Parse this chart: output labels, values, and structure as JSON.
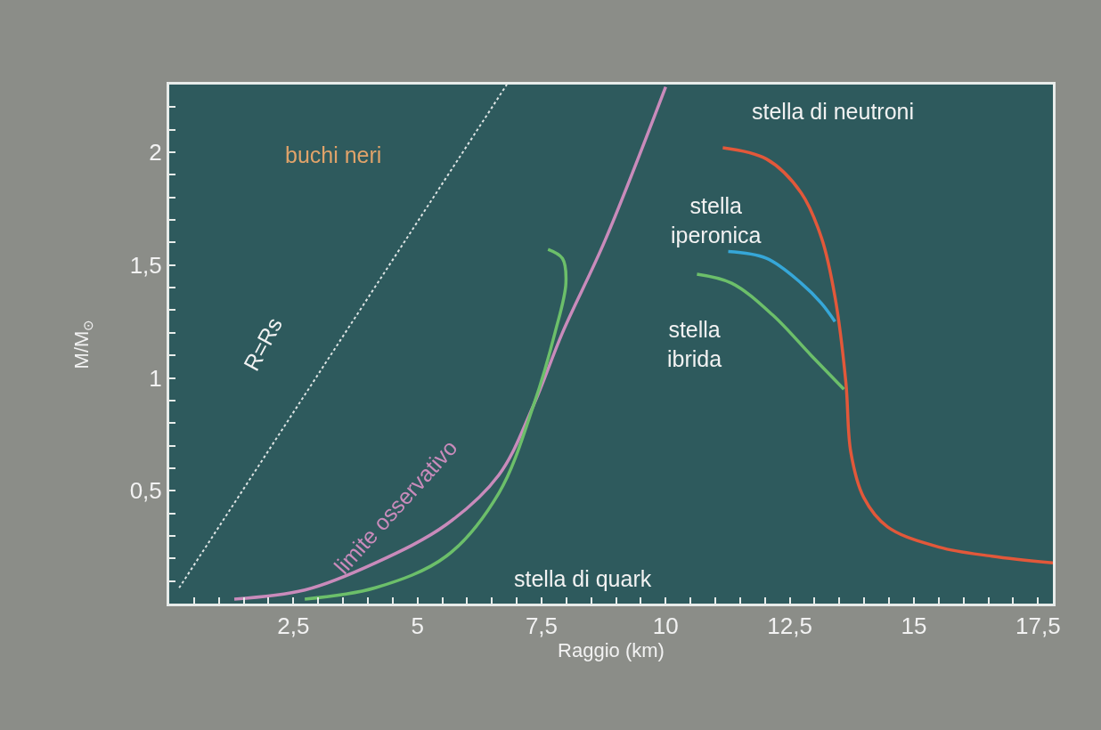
{
  "chart_data": {
    "type": "line",
    "xlabel": "Raggio (km)",
    "ylabel": "M/M$_{⊙}$",
    "xlim": [
      0,
      17.8
    ],
    "ylim": [
      0,
      2.3
    ],
    "xticks": [
      {
        "value": 0.5,
        "label": null
      },
      {
        "value": 1,
        "label": null
      },
      {
        "value": 1.5,
        "label": null
      },
      {
        "value": 2,
        "label": null
      },
      {
        "value": 2.5,
        "label": "2,5"
      },
      {
        "value": 3,
        "label": null
      },
      {
        "value": 3.5,
        "label": null
      },
      {
        "value": 4,
        "label": null
      },
      {
        "value": 4.5,
        "label": null
      },
      {
        "value": 5,
        "label": "5"
      },
      {
        "value": 5.5,
        "label": null
      },
      {
        "value": 6,
        "label": null
      },
      {
        "value": 6.5,
        "label": null
      },
      {
        "value": 7,
        "label": null
      },
      {
        "value": 7.5,
        "label": "7,5"
      },
      {
        "value": 8,
        "label": null
      },
      {
        "value": 8.5,
        "label": null
      },
      {
        "value": 9,
        "label": null
      },
      {
        "value": 9.5,
        "label": null
      },
      {
        "value": 10,
        "label": "10"
      },
      {
        "value": 10.5,
        "label": null
      },
      {
        "value": 11,
        "label": null
      },
      {
        "value": 11.5,
        "label": null
      },
      {
        "value": 12,
        "label": null
      },
      {
        "value": 12.5,
        "label": "12,5"
      },
      {
        "value": 13,
        "label": null
      },
      {
        "value": 13.5,
        "label": null
      },
      {
        "value": 14,
        "label": null
      },
      {
        "value": 14.5,
        "label": null
      },
      {
        "value": 15,
        "label": "15"
      },
      {
        "value": 15.5,
        "label": null
      },
      {
        "value": 16,
        "label": null
      },
      {
        "value": 16.5,
        "label": null
      },
      {
        "value": 17,
        "label": null
      },
      {
        "value": 17.5,
        "label": "17,5"
      }
    ],
    "yticks": [
      {
        "value": 0.1,
        "label": null
      },
      {
        "value": 0.2,
        "label": null
      },
      {
        "value": 0.3,
        "label": null
      },
      {
        "value": 0.4,
        "label": null
      },
      {
        "value": 0.5,
        "label": "0,5"
      },
      {
        "value": 0.6,
        "label": null
      },
      {
        "value": 0.7,
        "label": null
      },
      {
        "value": 0.8,
        "label": null
      },
      {
        "value": 0.9,
        "label": null
      },
      {
        "value": 1,
        "label": "1"
      },
      {
        "value": 1.1,
        "label": null
      },
      {
        "value": 1.2,
        "label": null
      },
      {
        "value": 1.3,
        "label": null
      },
      {
        "value": 1.4,
        "label": null
      },
      {
        "value": 1.5,
        "label": "1,5"
      },
      {
        "value": 1.6,
        "label": null
      },
      {
        "value": 1.7,
        "label": null
      },
      {
        "value": 1.8,
        "label": null
      },
      {
        "value": 1.9,
        "label": null
      },
      {
        "value": 2,
        "label": "2"
      },
      {
        "value": 2.1,
        "label": null
      },
      {
        "value": 2.2,
        "label": null
      }
    ],
    "line_style": "solid",
    "series": [
      {
        "color": "#dde4e4",
        "line_style": "dotted",
        "x": [
          0.2,
          6.8
        ],
        "values": [
          0.07,
          2.3
        ]
      },
      {
        "color": "#c98bbb",
        "x": [
          1.31,
          2.73,
          4.15,
          5.58,
          6.64,
          7.34,
          7.92,
          8.78,
          10.0
        ],
        "values": [
          0.02,
          0.06,
          0.18,
          0.35,
          0.57,
          0.88,
          1.2,
          1.61,
          2.29
        ]
      },
      {
        "color": "#6cbf6a",
        "x": [
          2.73,
          4.15,
          5.58,
          6.64,
          7.34,
          7.77,
          7.99,
          7.92,
          7.63
        ],
        "values": [
          0.02,
          0.07,
          0.21,
          0.49,
          0.88,
          1.2,
          1.42,
          1.53,
          1.57
        ]
      },
      {
        "color": "#e2583a",
        "x": [
          11.15,
          12.03,
          12.73,
          13.14,
          13.41,
          13.63,
          13.73,
          13.99,
          14.47,
          15.51,
          16.57,
          17.8
        ],
        "values": [
          2.02,
          1.97,
          1.82,
          1.62,
          1.36,
          0.98,
          0.67,
          0.47,
          0.34,
          0.25,
          0.21,
          0.18
        ]
      },
      {
        "color": "#36a7d8",
        "x": [
          11.26,
          12.03,
          12.73,
          13.14,
          13.41
        ],
        "values": [
          1.56,
          1.53,
          1.42,
          1.33,
          1.25
        ]
      },
      {
        "color": "#6cbf6a",
        "x": [
          10.63,
          11.33,
          12.15,
          12.93,
          13.59
        ],
        "values": [
          1.46,
          1.42,
          1.28,
          1.1,
          0.95
        ]
      }
    ],
    "annotations": [
      "buchi neri",
      "R=Rs",
      "limite osservativo",
      "stella di quark",
      "stella di neutroni",
      "stella iperonica",
      "stella ibrida"
    ]
  }
}
